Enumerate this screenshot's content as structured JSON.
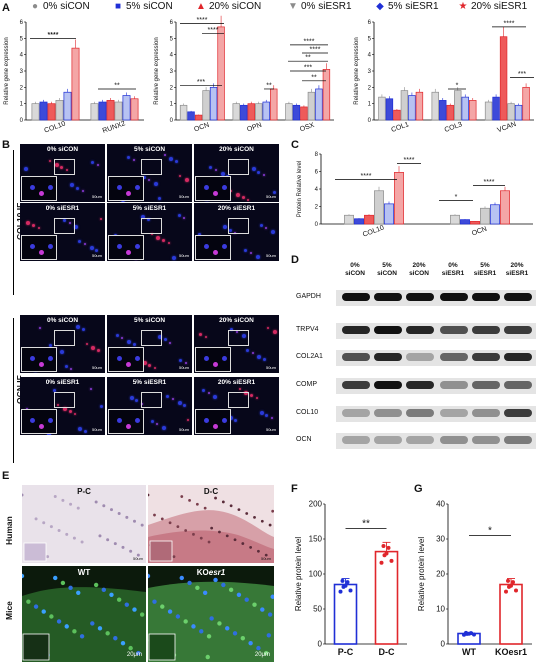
{
  "panels": {
    "A": "A",
    "B": "B",
    "C": "C",
    "D": "D",
    "E": "E",
    "F": "F",
    "G": "G"
  },
  "legend": [
    {
      "label": "0% siCON",
      "marker": "●",
      "color": "#8c8c8c"
    },
    {
      "label": "5% siCON",
      "marker": "■",
      "color": "#1f2fd6"
    },
    {
      "label": "20% siCON",
      "marker": "▲",
      "color": "#e0262b"
    },
    {
      "label": "0% siESR1",
      "marker": "▼",
      "color": "#8c8c8c"
    },
    {
      "label": "5% siESR1",
      "marker": "◆",
      "color": "#1f2fd6"
    },
    {
      "label": "20% siESR1",
      "marker": "★",
      "color": "#e0262b"
    }
  ],
  "chart_data": [
    {
      "type": "bar",
      "ylabel": "Relative gene expression",
      "ylim": [
        0,
        6
      ],
      "categories": [
        "COL10",
        "RUNX2"
      ],
      "series": [
        {
          "name": "0% siCON",
          "values": [
            1.0,
            1.0
          ]
        },
        {
          "name": "5% siCON",
          "values": [
            1.1,
            1.1
          ]
        },
        {
          "name": "20% siCON",
          "values": [
            1.0,
            1.2
          ]
        },
        {
          "name": "0% siESR1",
          "values": [
            1.2,
            1.1
          ]
        },
        {
          "name": "5% siESR1",
          "values": [
            1.7,
            1.5
          ]
        },
        {
          "name": "20% siESR1",
          "values": [
            4.4,
            1.3
          ]
        }
      ],
      "annotations": [
        "****",
        "****",
        "**"
      ]
    },
    {
      "type": "bar",
      "ylabel": "Relative gene expression",
      "ylim": [
        0,
        6
      ],
      "categories": [
        "OCN",
        "OPN",
        "OSX"
      ],
      "series": [
        {
          "name": "0% siCON",
          "values": [
            0.9,
            1.0,
            1.0
          ]
        },
        {
          "name": "5% siCON",
          "values": [
            0.5,
            0.9,
            0.9
          ]
        },
        {
          "name": "20% siCON",
          "values": [
            0.3,
            1.0,
            0.8
          ]
        },
        {
          "name": "0% siESR1",
          "values": [
            1.8,
            1.0,
            1.7
          ]
        },
        {
          "name": "5% siESR1",
          "values": [
            2.0,
            1.1,
            1.9
          ]
        },
        {
          "name": "20% siESR1",
          "values": [
            5.7,
            1.9,
            3.1
          ]
        }
      ],
      "annotations": [
        "****",
        "****",
        "***",
        "**",
        "**",
        "***",
        "**",
        "****",
        "****"
      ]
    },
    {
      "type": "bar",
      "ylabel": "Relative gene expression",
      "ylim": [
        0,
        6
      ],
      "categories": [
        "COL1",
        "COL3",
        "VCAN"
      ],
      "series": [
        {
          "name": "0% siCON",
          "values": [
            1.4,
            1.7,
            1.1
          ]
        },
        {
          "name": "5% siCON",
          "values": [
            1.3,
            1.2,
            1.4
          ]
        },
        {
          "name": "20% siCON",
          "values": [
            0.6,
            0.9,
            5.1
          ]
        },
        {
          "name": "0% siESR1",
          "values": [
            1.8,
            1.8,
            1.0
          ]
        },
        {
          "name": "5% siESR1",
          "values": [
            1.5,
            1.4,
            0.9
          ]
        },
        {
          "name": "20% siESR1",
          "values": [
            1.7,
            1.2,
            2.0
          ]
        }
      ],
      "annotations": [
        "*",
        "****",
        "***"
      ]
    },
    {
      "type": "bar",
      "ylabel": "Protein Relative level",
      "ylim": [
        0,
        8
      ],
      "yticks": [
        0,
        2,
        4,
        6,
        8
      ],
      "categories": [
        "COL10",
        "OCN"
      ],
      "series": [
        {
          "name": "0% siCON",
          "values": [
            1.0,
            1.0
          ]
        },
        {
          "name": "5% siCON",
          "values": [
            0.6,
            0.5
          ]
        },
        {
          "name": "20% siCON",
          "values": [
            1.0,
            0.3
          ]
        },
        {
          "name": "0% siESR1",
          "values": [
            3.8,
            1.8
          ]
        },
        {
          "name": "5% siESR1",
          "values": [
            2.3,
            2.2
          ]
        },
        {
          "name": "20% siESR1",
          "values": [
            5.9,
            3.8
          ]
        }
      ],
      "annotations": [
        "****",
        "****",
        "*",
        "****"
      ]
    },
    {
      "type": "bar",
      "ylabel": "Relative protein level",
      "ylim": [
        0,
        200
      ],
      "yticks": [
        0,
        50,
        100,
        150,
        200
      ],
      "categories": [
        "P-C",
        "D-C"
      ],
      "values": [
        85,
        132
      ],
      "colors": [
        "#1f2fd6",
        "#e0262b"
      ],
      "annotations": [
        "**"
      ]
    },
    {
      "type": "bar",
      "ylabel": "Relative protein level",
      "ylim": [
        0,
        40
      ],
      "yticks": [
        0,
        10,
        20,
        30,
        40
      ],
      "categories": [
        "WT",
        "KOesr1"
      ],
      "values": [
        3,
        17
      ],
      "colors": [
        "#1f2fd6",
        "#e0262b"
      ],
      "annotations": [
        "*"
      ]
    }
  ],
  "if_panels": {
    "col10_label": "COL10 IF",
    "ocn_label": "OCN IF",
    "row_labels": [
      "0% siCON",
      "5% siCON",
      "20% siCON",
      "0% siESR1",
      "5% siESR1",
      "20% siESR1"
    ],
    "scale": "50um"
  },
  "western": {
    "lanes": [
      "0% siCON",
      "5% siCON",
      "20% siCON",
      "0% siESR1",
      "5% siESR1",
      "20% siESR1"
    ],
    "lane_lines": [
      [
        "0%",
        "siCON"
      ],
      [
        "5%",
        "siCON"
      ],
      [
        "20%",
        "siCON"
      ],
      [
        "0%",
        "siESR1"
      ],
      [
        "5%",
        "siESR1"
      ],
      [
        "20%",
        "siESR1"
      ]
    ],
    "rows": [
      "GAPDH",
      "TRPV4",
      "COL2A1",
      "COMP",
      "COL10",
      "OCN"
    ]
  },
  "histology": {
    "human_label": "Human",
    "mice_label": "Mice",
    "top_titles": [
      "P-C",
      "D-C"
    ],
    "bottom_titles": [
      "WT",
      "KOesr1"
    ],
    "ko_prefix": "KO",
    "ko_suffix": "esr1",
    "scale_top": "50um",
    "scale_bottom": "20μm"
  }
}
